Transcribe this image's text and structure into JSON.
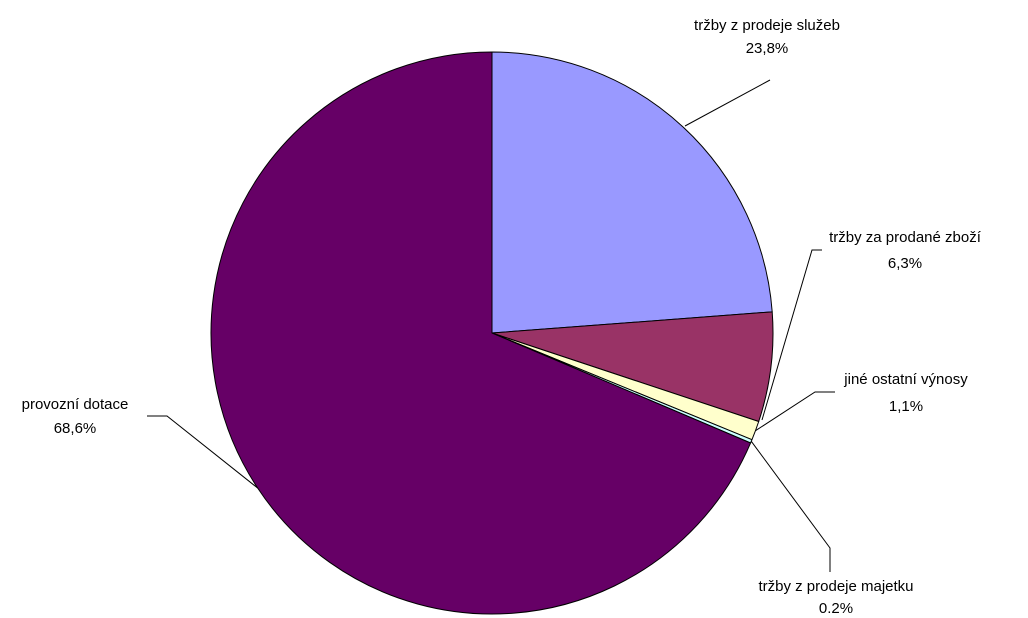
{
  "chart_data": {
    "type": "pie",
    "title": "",
    "start_angle_deg": 0,
    "direction": "clockwise",
    "slices": [
      {
        "label": "tržby z prodeje služeb",
        "value_label": "23,8%",
        "value": 23.8,
        "color": "#9999ff"
      },
      {
        "label": "tržby za prodané zboží",
        "value_label": "6,3%",
        "value": 6.3,
        "color": "#993366"
      },
      {
        "label": "jiné ostatní výnosy",
        "value_label": "1,1%",
        "value": 1.1,
        "color": "#ffffcc"
      },
      {
        "label": "tržby z prodeje majetku",
        "value_label": "0.2%",
        "value": 0.2,
        "color": "#ccffff"
      },
      {
        "label": "provozní dotace",
        "value_label": "68,6%",
        "value": 68.6,
        "color": "#660066"
      }
    ]
  }
}
